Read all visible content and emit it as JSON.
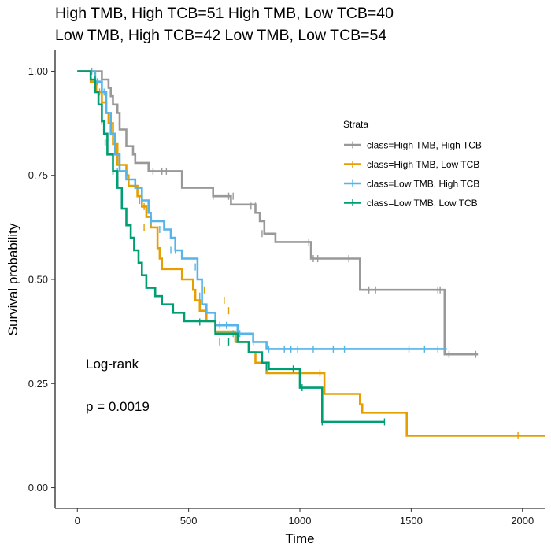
{
  "chart_data": {
    "type": "line",
    "subtype": "kaplan-meier",
    "title_lines": [
      "High TMB, High TCB=51 High TMB, Low TCB=40",
      "Low TMB, High TCB=42 Low TMB, Low TCB=54"
    ],
    "xlabel": "Time",
    "ylabel": "Survival probability",
    "xlim": [
      -100,
      2100
    ],
    "ylim": [
      -0.05,
      1.05
    ],
    "x_ticks": [
      0,
      500,
      1000,
      1500,
      2000
    ],
    "y_ticks": [
      0.0,
      0.25,
      0.5,
      0.75,
      1.0
    ],
    "y_tick_labels": [
      "0.00",
      "0.25",
      "0.50",
      "0.75",
      "1.00"
    ],
    "grid": false,
    "legend": {
      "title": "Strata",
      "placement": "top-right"
    },
    "annotations": [
      "Log-rank",
      "p = 0.0019"
    ],
    "series": [
      {
        "name": "class=High TMB, High TCB",
        "color": "#999999",
        "steps": [
          [
            0,
            1.0
          ],
          [
            110,
            0.98
          ],
          [
            140,
            0.96
          ],
          [
            150,
            0.94
          ],
          [
            160,
            0.92
          ],
          [
            180,
            0.9
          ],
          [
            190,
            0.86
          ],
          [
            220,
            0.82
          ],
          [
            250,
            0.8
          ],
          [
            260,
            0.78
          ],
          [
            320,
            0.76
          ],
          [
            340,
            0.76
          ],
          [
            470,
            0.72
          ],
          [
            610,
            0.7
          ],
          [
            690,
            0.68
          ],
          [
            800,
            0.66
          ],
          [
            820,
            0.64
          ],
          [
            840,
            0.61
          ],
          [
            890,
            0.59
          ],
          [
            1050,
            0.55
          ],
          [
            1270,
            0.475
          ],
          [
            1650,
            0.32
          ],
          [
            1800,
            0.32
          ]
        ],
        "censor": [
          [
            65,
            1.0
          ],
          [
            340,
            0.76
          ],
          [
            380,
            0.76
          ],
          [
            400,
            0.76
          ],
          [
            610,
            0.7
          ],
          [
            680,
            0.7
          ],
          [
            700,
            0.7
          ],
          [
            780,
            0.676
          ],
          [
            800,
            0.676
          ],
          [
            830,
            0.61
          ],
          [
            1040,
            0.59
          ],
          [
            1060,
            0.55
          ],
          [
            1080,
            0.55
          ],
          [
            1220,
            0.55
          ],
          [
            1310,
            0.475
          ],
          [
            1340,
            0.475
          ],
          [
            1620,
            0.475
          ],
          [
            1630,
            0.475
          ],
          [
            1670,
            0.32
          ],
          [
            1790,
            0.32
          ]
        ]
      },
      {
        "name": "class=High TMB, Low TCB",
        "color": "#E69F00",
        "steps": [
          [
            0,
            1.0
          ],
          [
            60,
            0.975
          ],
          [
            85,
            0.95
          ],
          [
            110,
            0.925
          ],
          [
            130,
            0.9
          ],
          [
            140,
            0.875
          ],
          [
            160,
            0.825
          ],
          [
            180,
            0.775
          ],
          [
            220,
            0.75
          ],
          [
            230,
            0.725
          ],
          [
            270,
            0.7
          ],
          [
            290,
            0.675
          ],
          [
            310,
            0.65
          ],
          [
            330,
            0.625
          ],
          [
            360,
            0.575
          ],
          [
            370,
            0.55
          ],
          [
            380,
            0.525
          ],
          [
            470,
            0.5
          ],
          [
            520,
            0.475
          ],
          [
            530,
            0.45
          ],
          [
            550,
            0.425
          ],
          [
            580,
            0.4
          ],
          [
            620,
            0.375
          ],
          [
            710,
            0.35
          ],
          [
            770,
            0.325
          ],
          [
            800,
            0.3
          ],
          [
            850,
            0.275
          ],
          [
            1110,
            0.225
          ],
          [
            1270,
            0.2
          ],
          [
            1280,
            0.18
          ],
          [
            1480,
            0.125
          ],
          [
            2100,
            0.125
          ]
        ],
        "censor": [
          [
            100,
            0.95
          ],
          [
            130,
            0.925
          ],
          [
            300,
            0.675
          ],
          [
            300,
            0.625
          ],
          [
            570,
            0.475
          ],
          [
            660,
            0.45
          ],
          [
            680,
            0.425
          ],
          [
            790,
            0.35
          ],
          [
            1090,
            0.275
          ],
          [
            1280,
            0.19
          ],
          [
            1980,
            0.125
          ]
        ]
      },
      {
        "name": "class=Low TMB, High TCB",
        "color": "#56B4E9",
        "steps": [
          [
            0,
            1.0
          ],
          [
            80,
            0.975
          ],
          [
            110,
            0.95
          ],
          [
            130,
            0.9
          ],
          [
            150,
            0.85
          ],
          [
            170,
            0.8
          ],
          [
            190,
            0.76
          ],
          [
            220,
            0.74
          ],
          [
            260,
            0.72
          ],
          [
            290,
            0.69
          ],
          [
            320,
            0.66
          ],
          [
            330,
            0.64
          ],
          [
            390,
            0.62
          ],
          [
            420,
            0.6
          ],
          [
            440,
            0.57
          ],
          [
            470,
            0.55
          ],
          [
            540,
            0.5
          ],
          [
            560,
            0.44
          ],
          [
            580,
            0.42
          ],
          [
            620,
            0.39
          ],
          [
            720,
            0.37
          ],
          [
            790,
            0.35
          ],
          [
            850,
            0.333
          ],
          [
            1660,
            0.333
          ]
        ],
        "censor": [
          [
            90,
            0.975
          ],
          [
            120,
            0.95
          ],
          [
            160,
            0.76
          ],
          [
            180,
            0.76
          ],
          [
            280,
            0.69
          ],
          [
            330,
            0.64
          ],
          [
            370,
            0.62
          ],
          [
            420,
            0.57
          ],
          [
            440,
            0.57
          ],
          [
            530,
            0.53
          ],
          [
            550,
            0.46
          ],
          [
            640,
            0.39
          ],
          [
            670,
            0.39
          ],
          [
            700,
            0.37
          ],
          [
            730,
            0.37
          ],
          [
            860,
            0.333
          ],
          [
            930,
            0.333
          ],
          [
            960,
            0.333
          ],
          [
            990,
            0.333
          ],
          [
            1060,
            0.333
          ],
          [
            1150,
            0.333
          ],
          [
            1200,
            0.333
          ],
          [
            1490,
            0.333
          ],
          [
            1560,
            0.333
          ],
          [
            1620,
            0.333
          ]
        ]
      },
      {
        "name": "class=Low TMB, Low TCB",
        "color": "#009E73",
        "steps": [
          [
            0,
            1.0
          ],
          [
            60,
            0.98
          ],
          [
            80,
            0.95
          ],
          [
            95,
            0.92
          ],
          [
            110,
            0.88
          ],
          [
            120,
            0.85
          ],
          [
            135,
            0.8
          ],
          [
            160,
            0.76
          ],
          [
            180,
            0.72
          ],
          [
            200,
            0.67
          ],
          [
            220,
            0.63
          ],
          [
            240,
            0.6
          ],
          [
            255,
            0.57
          ],
          [
            275,
            0.54
          ],
          [
            290,
            0.51
          ],
          [
            310,
            0.48
          ],
          [
            350,
            0.46
          ],
          [
            380,
            0.44
          ],
          [
            430,
            0.42
          ],
          [
            480,
            0.4
          ],
          [
            550,
            0.4
          ],
          [
            620,
            0.37
          ],
          [
            720,
            0.35
          ],
          [
            770,
            0.325
          ],
          [
            830,
            0.3
          ],
          [
            860,
            0.285
          ],
          [
            1000,
            0.24
          ],
          [
            1100,
            0.158
          ],
          [
            1380,
            0.158
          ]
        ],
        "censor": [
          [
            80,
            0.98
          ],
          [
            110,
            0.88
          ],
          [
            125,
            0.83
          ],
          [
            160,
            0.76
          ],
          [
            550,
            0.398
          ],
          [
            640,
            0.35
          ],
          [
            680,
            0.35
          ],
          [
            850,
            0.29
          ],
          [
            970,
            0.285
          ],
          [
            1010,
            0.24
          ],
          [
            1100,
            0.158
          ],
          [
            1380,
            0.158
          ]
        ]
      }
    ]
  }
}
